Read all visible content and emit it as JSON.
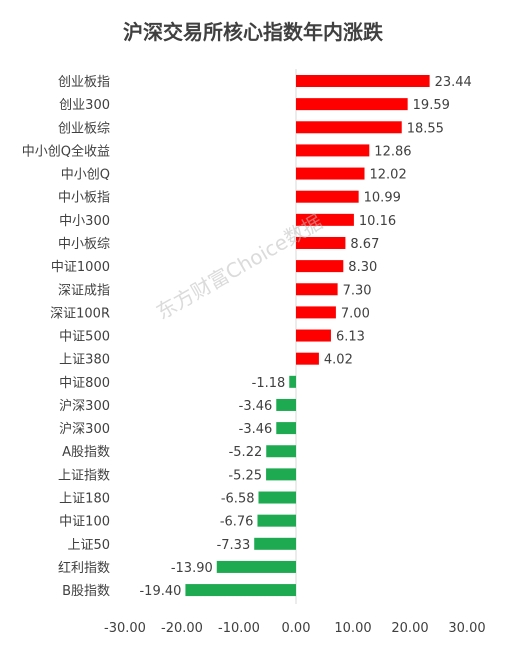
{
  "chart_data": {
    "type": "bar",
    "orientation": "horizontal",
    "title": "沪深交易所核心指数年内涨跌",
    "categories": [
      "创业板指",
      "创业300",
      "创业板综",
      "中小创Q全收益",
      "中小创Q",
      "中小板指",
      "中小300",
      "中小板综",
      "中证1000",
      "深证成指",
      "深证100R",
      "中证500",
      "上证380",
      "中证800",
      "沪深300",
      "沪深300",
      "A股指数",
      "上证指数",
      "上证180",
      "中证100",
      "上证50",
      "红利指数",
      "B股指数"
    ],
    "values": [
      23.44,
      19.59,
      18.55,
      12.86,
      12.02,
      10.99,
      10.16,
      8.67,
      8.3,
      7.3,
      7.0,
      6.13,
      4.02,
      -1.18,
      -3.46,
      -3.46,
      -5.22,
      -5.25,
      -6.58,
      -6.76,
      -7.33,
      -13.9,
      -19.4
    ],
    "data_labels": [
      "23.44",
      "19.59",
      "18.55",
      "12.86",
      "12.02",
      "10.99",
      "10.16",
      "8.67",
      "8.30",
      "7.30",
      "7.00",
      "6.13",
      "4.02",
      "-1.18",
      "-3.46",
      "-3.46",
      "-5.22",
      "-5.25",
      "-6.58",
      "-6.76",
      "-7.33",
      "-13.90",
      "-19.40"
    ],
    "xlim": [
      -30,
      30
    ],
    "x_ticks": [
      -30,
      -20,
      -10,
      0,
      10,
      20,
      30
    ],
    "x_tick_labels": [
      "-30.00",
      "-20.00",
      "-10.00",
      "0.00",
      "10.00",
      "20.00",
      "30.00"
    ],
    "xlabel": "",
    "ylabel": "",
    "grid": false,
    "legend": false,
    "watermark": "东方财富Choice数据",
    "colors": {
      "positive": "#ff0000",
      "negative": "#1eaa50",
      "text": "#404040",
      "axis": "#d9d9d9"
    }
  }
}
